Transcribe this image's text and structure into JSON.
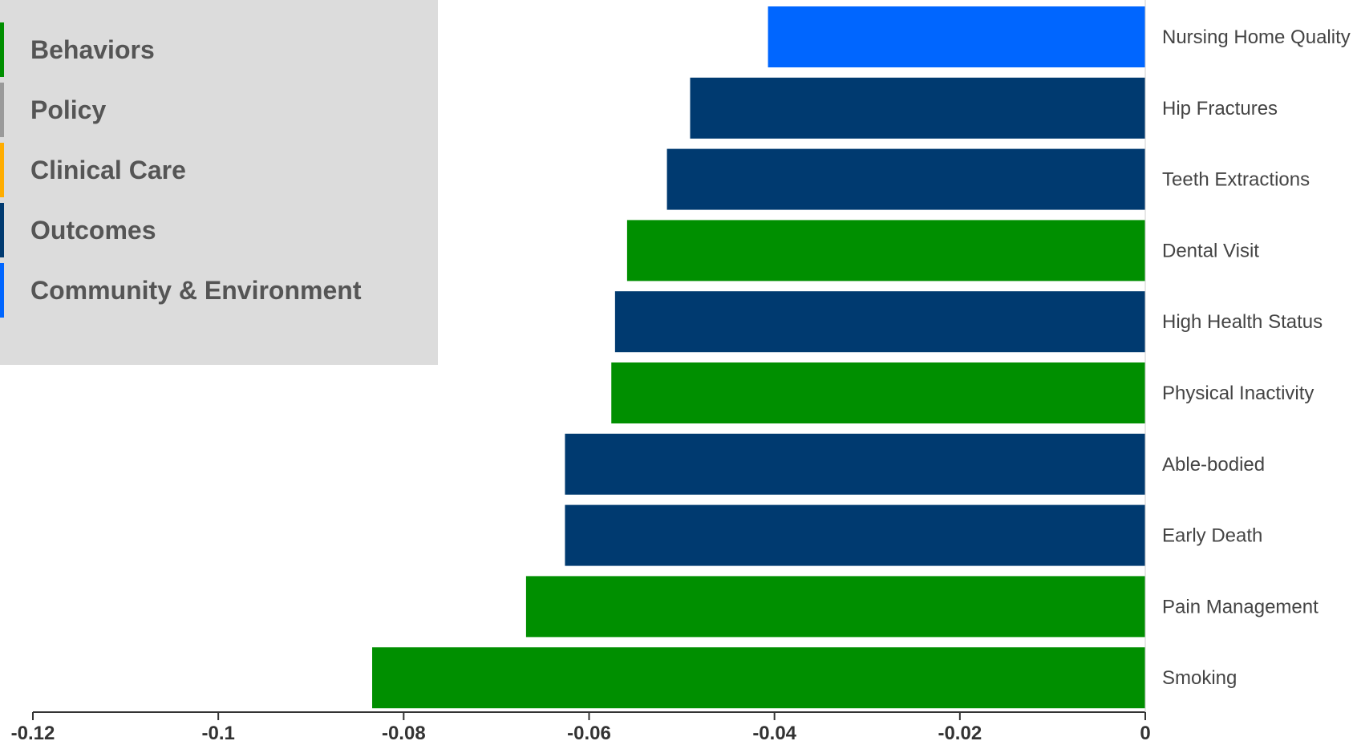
{
  "legend": {
    "items": [
      {
        "label": "Behaviors",
        "color": "#008f00"
      },
      {
        "label": "Policy",
        "color": "#9a9a9a"
      },
      {
        "label": "Clinical Care",
        "color": "#ffad00"
      },
      {
        "label": "Outcomes",
        "color": "#003a70"
      },
      {
        "label": "Community & Environment",
        "color": "#0066ff"
      }
    ]
  },
  "chart_data": {
    "type": "bar",
    "orientation": "horizontal",
    "categories": [
      "Nursing Home Quality",
      "Hip Fractures",
      "Teeth Extractions",
      "Dental Visit",
      "High Health Status",
      "Physical Inactivity",
      "Able-bodied",
      "Early Death",
      "Pain Management",
      "Smoking"
    ],
    "values": [
      -0.0407,
      -0.0491,
      -0.0516,
      -0.0559,
      -0.0572,
      -0.0576,
      -0.0626,
      -0.0626,
      -0.0668,
      -0.0834
    ],
    "bar_groups": [
      "Community & Environment",
      "Outcomes",
      "Outcomes",
      "Behaviors",
      "Outcomes",
      "Behaviors",
      "Outcomes",
      "Outcomes",
      "Behaviors",
      "Behaviors"
    ],
    "xlim": [
      -0.12,
      0
    ],
    "xticks": [
      -0.12,
      -0.1,
      -0.08,
      -0.06,
      -0.04,
      -0.02,
      0
    ],
    "xtick_labels": [
      "-0.12",
      "-0.1",
      "-0.08",
      "-0.06",
      "-0.04",
      "-0.02",
      "0"
    ],
    "grid": false,
    "legend_position": "top-left"
  }
}
